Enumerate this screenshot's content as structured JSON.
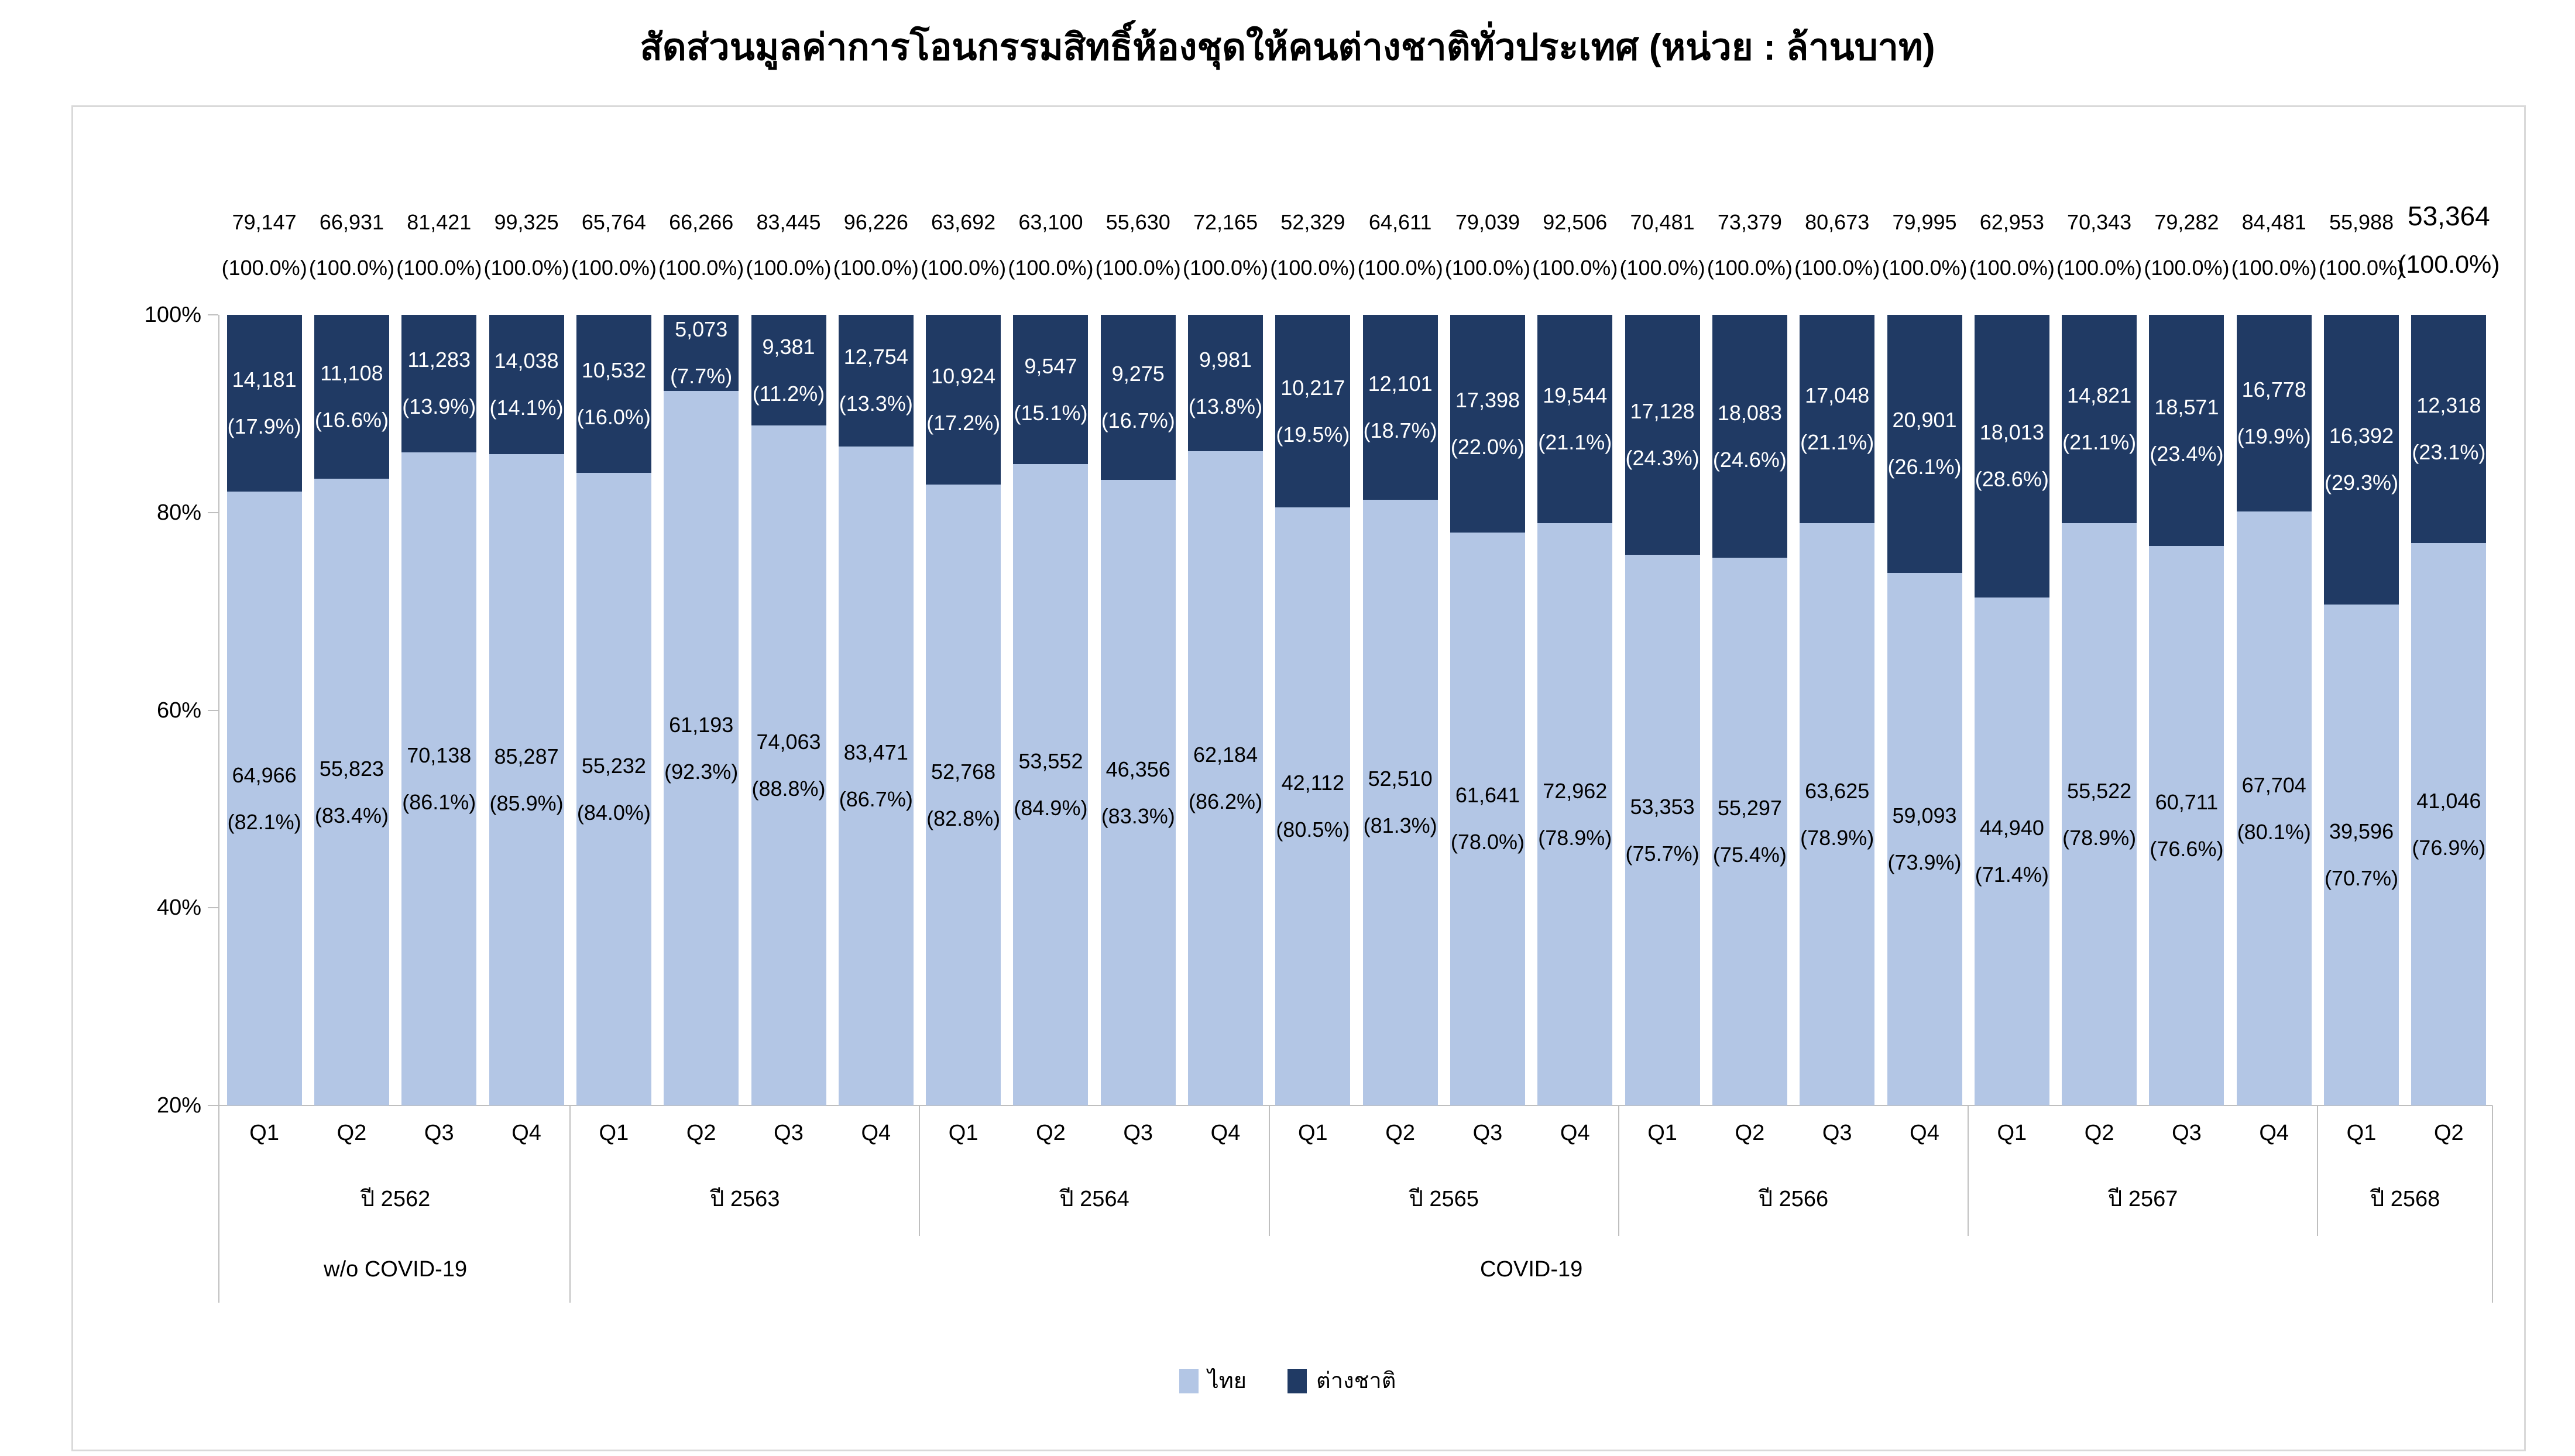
{
  "title": "สัดส่วนมูลค่าการโอนกรรมสิทธิ์ห้องชุดให้คนต่างชาติทั่วประเทศ (หน่วย : ล้านบาท)",
  "colors": {
    "thai": "#b3c6e5",
    "foreign": "#203a64",
    "axis": "#bfbfbf",
    "panel_border": "#d9d9d9",
    "label_on_dark": "#ffffff",
    "label_on_light": "#000000"
  },
  "legend": {
    "items": [
      {
        "label": "ไทย",
        "color_key": "thai"
      },
      {
        "label": "ต่างชาติ",
        "color_key": "foreign"
      }
    ]
  },
  "period_labels": [
    {
      "label": "w/o COVID-19",
      "start_year_index": 0,
      "end_year_index": 0
    },
    {
      "label": "COVID-19",
      "start_year_index": 1,
      "end_year_index": 6
    }
  ],
  "chart_data": {
    "type": "bar",
    "stacked": true,
    "percent_axis": true,
    "title": "สัดส่วนมูลค่าการโอนกรรมสิทธิ์ห้องชุดให้คนต่างชาติทั่วประเทศ (หน่วย : ล้านบาท)",
    "unit_note": "หน่วย : ล้านบาท",
    "series_names": [
      "ไทย",
      "ต่างชาติ"
    ],
    "y_axis": {
      "min": 20,
      "max": 100,
      "ticks": [
        {
          "label": "100%",
          "value": 100
        },
        {
          "label": "80%",
          "value": 80
        },
        {
          "label": "60%",
          "value": 60
        },
        {
          "label": "40%",
          "value": 40
        },
        {
          "label": "20%",
          "value": 20
        }
      ]
    },
    "years": [
      {
        "label": "ปี 2562",
        "quarters": [
          {
            "quarter": "Q1",
            "total": "79,147",
            "total_pct": "(100.0%)",
            "thai": "64,966",
            "thai_pct": "(82.1%)",
            "thai_pct_value": 82.1,
            "foreign": "14,181",
            "foreign_pct": "(17.9%)",
            "foreign_pct_value": 17.9
          },
          {
            "quarter": "Q2",
            "total": "66,931",
            "total_pct": "(100.0%)",
            "thai": "55,823",
            "thai_pct": "(83.4%)",
            "thai_pct_value": 83.4,
            "foreign": "11,108",
            "foreign_pct": "(16.6%)",
            "foreign_pct_value": 16.6
          },
          {
            "quarter": "Q3",
            "total": "81,421",
            "total_pct": "(100.0%)",
            "thai": "70,138",
            "thai_pct": "(86.1%)",
            "thai_pct_value": 86.1,
            "foreign": "11,283",
            "foreign_pct": "(13.9%)",
            "foreign_pct_value": 13.9
          },
          {
            "quarter": "Q4",
            "total": "99,325",
            "total_pct": "(100.0%)",
            "thai": "85,287",
            "thai_pct": "(85.9%)",
            "thai_pct_value": 85.9,
            "foreign": "14,038",
            "foreign_pct": "(14.1%)",
            "foreign_pct_value": 14.1
          }
        ]
      },
      {
        "label": "ปี 2563",
        "quarters": [
          {
            "quarter": "Q1",
            "total": "65,764",
            "total_pct": "(100.0%)",
            "thai": "55,232",
            "thai_pct": "(84.0%)",
            "thai_pct_value": 84.0,
            "foreign": "10,532",
            "foreign_pct": "(16.0%)",
            "foreign_pct_value": 16.0
          },
          {
            "quarter": "Q2",
            "total": "66,266",
            "total_pct": "(100.0%)",
            "thai": "61,193",
            "thai_pct": "(92.3%)",
            "thai_pct_value": 92.3,
            "foreign": "5,073",
            "foreign_pct": "(7.7%)",
            "foreign_pct_value": 7.7
          },
          {
            "quarter": "Q3",
            "total": "83,445",
            "total_pct": "(100.0%)",
            "thai": "74,063",
            "thai_pct": "(88.8%)",
            "thai_pct_value": 88.8,
            "foreign": "9,381",
            "foreign_pct": "(11.2%)",
            "foreign_pct_value": 11.2
          },
          {
            "quarter": "Q4",
            "total": "96,226",
            "total_pct": "(100.0%)",
            "thai": "83,471",
            "thai_pct": "(86.7%)",
            "thai_pct_value": 86.7,
            "foreign": "12,754",
            "foreign_pct": "(13.3%)",
            "foreign_pct_value": 13.3
          }
        ]
      },
      {
        "label": "ปี 2564",
        "quarters": [
          {
            "quarter": "Q1",
            "total": "63,692",
            "total_pct": "(100.0%)",
            "thai": "52,768",
            "thai_pct": "(82.8%)",
            "thai_pct_value": 82.8,
            "foreign": "10,924",
            "foreign_pct": "(17.2%)",
            "foreign_pct_value": 17.2
          },
          {
            "quarter": "Q2",
            "total": "63,100",
            "total_pct": "(100.0%)",
            "thai": "53,552",
            "thai_pct": "(84.9%)",
            "thai_pct_value": 84.9,
            "foreign": "9,547",
            "foreign_pct": "(15.1%)",
            "foreign_pct_value": 15.1
          },
          {
            "quarter": "Q3",
            "total": "55,630",
            "total_pct": "(100.0%)",
            "thai": "46,356",
            "thai_pct": "(83.3%)",
            "thai_pct_value": 83.3,
            "foreign": "9,275",
            "foreign_pct": "(16.7%)",
            "foreign_pct_value": 16.7
          },
          {
            "quarter": "Q4",
            "total": "72,165",
            "total_pct": "(100.0%)",
            "thai": "62,184",
            "thai_pct": "(86.2%)",
            "thai_pct_value": 86.2,
            "foreign": "9,981",
            "foreign_pct": "(13.8%)",
            "foreign_pct_value": 13.8
          }
        ]
      },
      {
        "label": "ปี 2565",
        "quarters": [
          {
            "quarter": "Q1",
            "total": "52,329",
            "total_pct": "(100.0%)",
            "thai": "42,112",
            "thai_pct": "(80.5%)",
            "thai_pct_value": 80.5,
            "foreign": "10,217",
            "foreign_pct": "(19.5%)",
            "foreign_pct_value": 19.5
          },
          {
            "quarter": "Q2",
            "total": "64,611",
            "total_pct": "(100.0%)",
            "thai": "52,510",
            "thai_pct": "(81.3%)",
            "thai_pct_value": 81.3,
            "foreign": "12,101",
            "foreign_pct": "(18.7%)",
            "foreign_pct_value": 18.7
          },
          {
            "quarter": "Q3",
            "total": "79,039",
            "total_pct": "(100.0%)",
            "thai": "61,641",
            "thai_pct": "(78.0%)",
            "thai_pct_value": 78.0,
            "foreign": "17,398",
            "foreign_pct": "(22.0%)",
            "foreign_pct_value": 22.0
          },
          {
            "quarter": "Q4",
            "total": "92,506",
            "total_pct": "(100.0%)",
            "thai": "72,962",
            "thai_pct": "(78.9%)",
            "thai_pct_value": 78.9,
            "foreign": "19,544",
            "foreign_pct": "(21.1%)",
            "foreign_pct_value": 21.1
          }
        ]
      },
      {
        "label": "ปี 2566",
        "quarters": [
          {
            "quarter": "Q1",
            "total": "70,481",
            "total_pct": "(100.0%)",
            "thai": "53,353",
            "thai_pct": "(75.7%)",
            "thai_pct_value": 75.7,
            "foreign": "17,128",
            "foreign_pct": "(24.3%)",
            "foreign_pct_value": 24.3
          },
          {
            "quarter": "Q2",
            "total": "73,379",
            "total_pct": "(100.0%)",
            "thai": "55,297",
            "thai_pct": "(75.4%)",
            "thai_pct_value": 75.4,
            "foreign": "18,083",
            "foreign_pct": "(24.6%)",
            "foreign_pct_value": 24.6
          },
          {
            "quarter": "Q3",
            "total": "80,673",
            "total_pct": "(100.0%)",
            "thai": "63,625",
            "thai_pct": "(78.9%)",
            "thai_pct_value": 78.9,
            "foreign": "17,048",
            "foreign_pct": "(21.1%)",
            "foreign_pct_value": 21.1
          },
          {
            "quarter": "Q4",
            "total": "79,995",
            "total_pct": "(100.0%)",
            "thai": "59,093",
            "thai_pct": "(73.9%)",
            "thai_pct_value": 73.9,
            "foreign": "20,901",
            "foreign_pct": "(26.1%)",
            "foreign_pct_value": 26.1
          }
        ]
      },
      {
        "label": "ปี 2567",
        "quarters": [
          {
            "quarter": "Q1",
            "total": "62,953",
            "total_pct": "(100.0%)",
            "thai": "44,940",
            "thai_pct": "(71.4%)",
            "thai_pct_value": 71.4,
            "foreign": "18,013",
            "foreign_pct": "(28.6%)",
            "foreign_pct_value": 28.6
          },
          {
            "quarter": "Q2",
            "total": "70,343",
            "total_pct": "(100.0%)",
            "thai": "55,522",
            "thai_pct": "(78.9%)",
            "thai_pct_value": 78.9,
            "foreign": "14,821",
            "foreign_pct": "(21.1%)",
            "foreign_pct_value": 21.1
          },
          {
            "quarter": "Q3",
            "total": "79,282",
            "total_pct": "(100.0%)",
            "thai": "60,711",
            "thai_pct": "(76.6%)",
            "thai_pct_value": 76.6,
            "foreign": "18,571",
            "foreign_pct": "(23.4%)",
            "foreign_pct_value": 23.4
          },
          {
            "quarter": "Q4",
            "total": "84,481",
            "total_pct": "(100.0%)",
            "thai": "67,704",
            "thai_pct": "(80.1%)",
            "thai_pct_value": 80.1,
            "foreign": "16,778",
            "foreign_pct": "(19.9%)",
            "foreign_pct_value": 19.9
          }
        ]
      },
      {
        "label": "ปี 2568",
        "quarters": [
          {
            "quarter": "Q1",
            "total": "55,988",
            "total_pct": "(100.0%)",
            "thai": "39,596",
            "thai_pct": "(70.7%)",
            "thai_pct_value": 70.7,
            "foreign": "16,392",
            "foreign_pct": "(29.3%)",
            "foreign_pct_value": 29.3
          },
          {
            "quarter": "Q2",
            "total": "53,364",
            "total_pct": "(100.0%)",
            "thai": "41,046",
            "thai_pct": "(76.9%)",
            "thai_pct_value": 76.9,
            "foreign": "12,318",
            "foreign_pct": "(23.1%)",
            "foreign_pct_value": 23.1,
            "emphasis": true
          }
        ]
      }
    ]
  }
}
